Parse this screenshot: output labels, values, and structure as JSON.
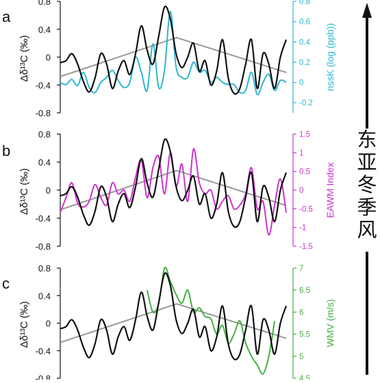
{
  "colors": {
    "black": "#111111",
    "trend": "#999999",
    "cyan": "#2bb7cf",
    "magenta": "#cc33cc",
    "green": "#44b044"
  },
  "side_label": "东亚冬季风",
  "chart_data": [
    {
      "type": "line",
      "panel_label": "a",
      "ylabel": "Δδ¹³C (‰)",
      "y2label": "nssK (log (ppb))",
      "ylim": [
        -0.8,
        0.8
      ],
      "y_ticks": [
        "-0.8",
        "-0.4",
        "0",
        "0.4",
        "0.8"
      ],
      "y2lim": [
        -0.3,
        0.8
      ],
      "y2_ticks": [
        "-0.2",
        "0",
        "0.2",
        "0.4",
        "0.6",
        "0.8"
      ],
      "series": [
        {
          "role": "primary",
          "values": [
            -0.08,
            -0.05,
            0.05,
            -0.1,
            -0.35,
            -0.5,
            -0.3,
            0.05,
            -0.1,
            -0.45,
            -0.2,
            -0.05,
            -0.25,
            0.05,
            0.45,
            0.1,
            -0.1,
            0.3,
            0.72,
            0.55,
            0.05,
            -0.15,
            0.0,
            0.2,
            -0.2,
            -0.05,
            -0.4,
            -0.2,
            0.25,
            -0.3,
            -0.52,
            -0.45,
            -0.1,
            0.25,
            -0.45,
            0.05,
            -0.1,
            -0.45,
            0.0,
            0.25
          ]
        },
        {
          "role": "secondary",
          "values": [
            0.0,
            -0.02,
            0.03,
            -0.03,
            0.1,
            -0.05,
            -0.1,
            0.0,
            0.05,
            0.12,
            0.02,
            -0.05,
            0.0,
            0.25,
            0.1,
            -0.08,
            0.38,
            -0.05,
            0.12,
            0.7,
            0.15,
            0.05,
            0.05,
            0.2,
            0.1,
            0.12,
            0.0,
            0.05,
            0.0,
            -0.02,
            -0.02,
            -0.1,
            -0.08,
            0.1,
            -0.12,
            0.0,
            0.08,
            -0.08,
            0.02,
            0.0
          ]
        },
        {
          "role": "trend",
          "values": [
            -0.28,
            0.28,
            -0.22
          ]
        }
      ]
    },
    {
      "type": "line",
      "panel_label": "b",
      "ylabel": "Δδ¹³C (‰)",
      "y2label": "EAWM Index",
      "ylim": [
        -0.8,
        0.8
      ],
      "y_ticks": [
        "-0.8",
        "-0.4",
        "0",
        "0.4",
        "0.8"
      ],
      "y2lim": [
        -1.5,
        1.5
      ],
      "y2_ticks": [
        "-1.5",
        "-1",
        "-0.5",
        "0",
        "0.5",
        "1",
        "1.5"
      ],
      "series": [
        {
          "role": "primary",
          "values": [
            -0.08,
            -0.05,
            0.05,
            -0.1,
            -0.35,
            -0.5,
            -0.3,
            0.05,
            -0.1,
            -0.45,
            -0.2,
            -0.05,
            -0.25,
            0.05,
            0.45,
            0.1,
            -0.1,
            0.3,
            0.72,
            0.55,
            0.05,
            -0.15,
            0.0,
            0.2,
            -0.2,
            -0.05,
            -0.4,
            -0.2,
            0.25,
            -0.3,
            -0.52,
            -0.45,
            -0.1,
            0.25,
            -0.45,
            0.05,
            -0.1,
            -0.45,
            0.0,
            0.25
          ]
        },
        {
          "role": "secondary",
          "values": [
            -0.6,
            -0.2,
            0.2,
            -0.35,
            -0.45,
            -0.3,
            0.15,
            -0.2,
            -0.4,
            0.2,
            -0.1,
            0.0,
            -0.3,
            0.35,
            0.8,
            -0.2,
            0.6,
            0.9,
            -0.1,
            1.0,
            0.1,
            0.7,
            -0.3,
            1.1,
            0.2,
            -0.1,
            0.0,
            -0.5,
            -0.3,
            -0.15,
            -0.5,
            -0.4,
            -0.1,
            0.6,
            -0.5,
            -0.3,
            -1.2,
            -0.4,
            0.3,
            -0.6
          ]
        },
        {
          "role": "trend",
          "values": [
            -0.28,
            0.28,
            -0.22
          ]
        }
      ]
    },
    {
      "type": "line",
      "panel_label": "c",
      "ylabel": "Δδ¹³C (‰)",
      "y2label": "WMV (m/s)",
      "ylim": [
        -0.8,
        0.8
      ],
      "y_ticks": [
        "-0.8",
        "-0.4",
        "0",
        "0.4",
        "0.8"
      ],
      "y2lim": [
        4.5,
        7
      ],
      "y2_ticks": [
        "4.5",
        "5",
        "5.5",
        "6",
        "6.5",
        "7"
      ],
      "series": [
        {
          "role": "primary",
          "values": [
            -0.08,
            -0.05,
            0.05,
            -0.1,
            -0.35,
            -0.5,
            -0.3,
            0.05,
            -0.1,
            -0.45,
            -0.2,
            -0.05,
            -0.25,
            0.05,
            0.45,
            0.1,
            -0.1,
            0.3,
            0.72,
            0.55,
            0.05,
            -0.15,
            0.0,
            0.2,
            -0.2,
            -0.05,
            -0.4,
            -0.2,
            0.25,
            -0.3,
            -0.52,
            -0.45,
            -0.1,
            0.25,
            -0.45,
            0.05,
            -0.1,
            -0.45,
            0.0,
            0.25
          ]
        },
        {
          "role": "secondary",
          "x_range": [
            15,
            37
          ],
          "values": [
            6.5,
            6.0,
            6.2,
            7.0,
            6.7,
            6.4,
            6.2,
            6.5,
            6.0,
            6.1,
            5.9,
            5.85,
            5.5,
            5.7,
            5.3,
            5.5,
            5.8,
            5.3,
            5.0,
            4.8,
            4.6,
            5.0,
            5.8
          ]
        },
        {
          "role": "trend",
          "values": [
            -0.28,
            0.28,
            -0.22
          ]
        }
      ]
    }
  ]
}
